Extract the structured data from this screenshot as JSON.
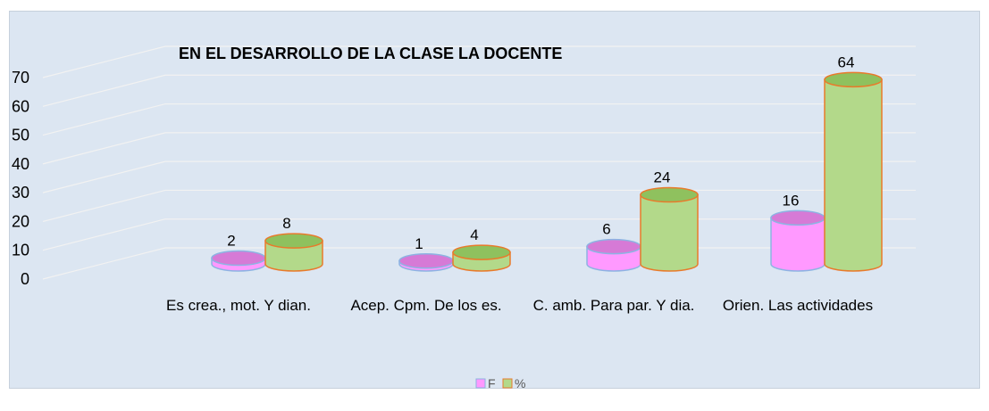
{
  "chart_data": {
    "type": "bar3d",
    "title": "EN EL DESARROLLO DE LA CLASE LA DOCENTE",
    "categories": [
      "Es crea., mot. Y dian.",
      "Acep. Cpm. De los es.",
      "C. amb. Para par. Y dia.",
      "Orien. Las actividades"
    ],
    "series": [
      {
        "name": "F",
        "color": "#ff99ff",
        "values": [
          2,
          1,
          6,
          16
        ]
      },
      {
        "name": "%",
        "color": "#b3d98a",
        "values": [
          8,
          4,
          24,
          64
        ]
      }
    ],
    "ylim": [
      0,
      70
    ],
    "yticks": [
      0,
      10,
      20,
      30,
      40,
      50,
      60,
      70
    ],
    "grid": true,
    "legend": "bottom"
  }
}
